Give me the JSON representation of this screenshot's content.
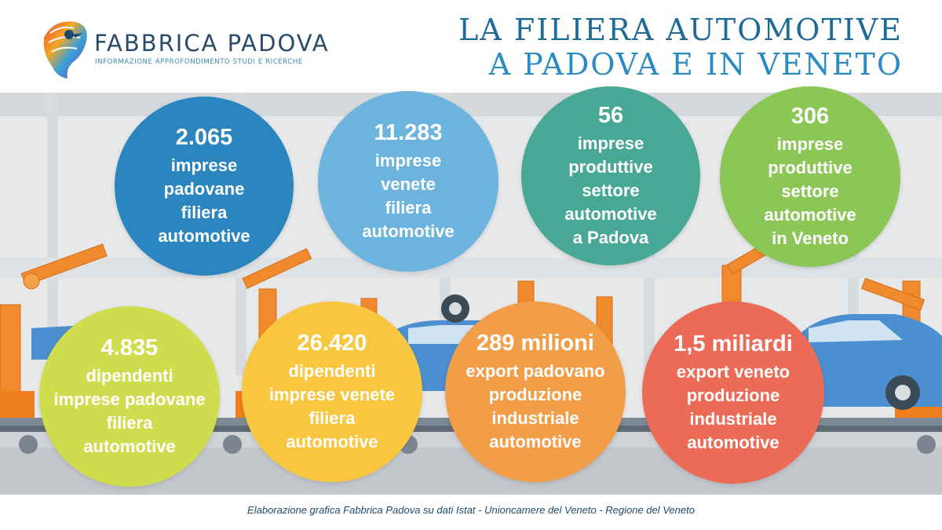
{
  "brand": {
    "name": "FABBRICA PADOVA",
    "tagline": "INFORMAZIONE APPROFONDIMENTO STUDI E RICERCHE"
  },
  "title": {
    "line1": "LA FILIERA AUTOMOTIVE",
    "line2": "A PADOVA E IN VENETO"
  },
  "stats": [
    {
      "value": "2.065",
      "label": "imprese\npadovane\nfiliera\nautomotive",
      "color": "#2b86bf"
    },
    {
      "value": "11.283",
      "label": "imprese\nvenete\nfiliera\nautomotive",
      "color": "#6cb4de"
    },
    {
      "value": "56",
      "label": "imprese\nproduttive\nsettore\nautomotive\na Padova",
      "color": "#48a895"
    },
    {
      "value": "306",
      "label": "imprese\nproduttive\nsettore\nautomotive\nin Veneto",
      "color": "#8cc657"
    },
    {
      "value": "4.835",
      "label": "dipendenti\nimprese padovane\nfiliera\nautomotive",
      "color": "#cfdc4e"
    },
    {
      "value": "26.420",
      "label": "dipendenti\nimprese venete\nfiliera\nautomotive",
      "color": "#f8c63f"
    },
    {
      "value": "289 milioni",
      "label": "export padovano\nproduzione\nindustriale\nautomotive",
      "color": "#f29d48"
    },
    {
      "value": "1,5 miliardi",
      "label": "export veneto\nproduzione\nindustriale\nautomotive",
      "color": "#ec6b57"
    }
  ],
  "source_note": "Elaborazione grafica Fabbrica Padova su dati Istat - Unioncamere del Veneto - Regione del Veneto"
}
